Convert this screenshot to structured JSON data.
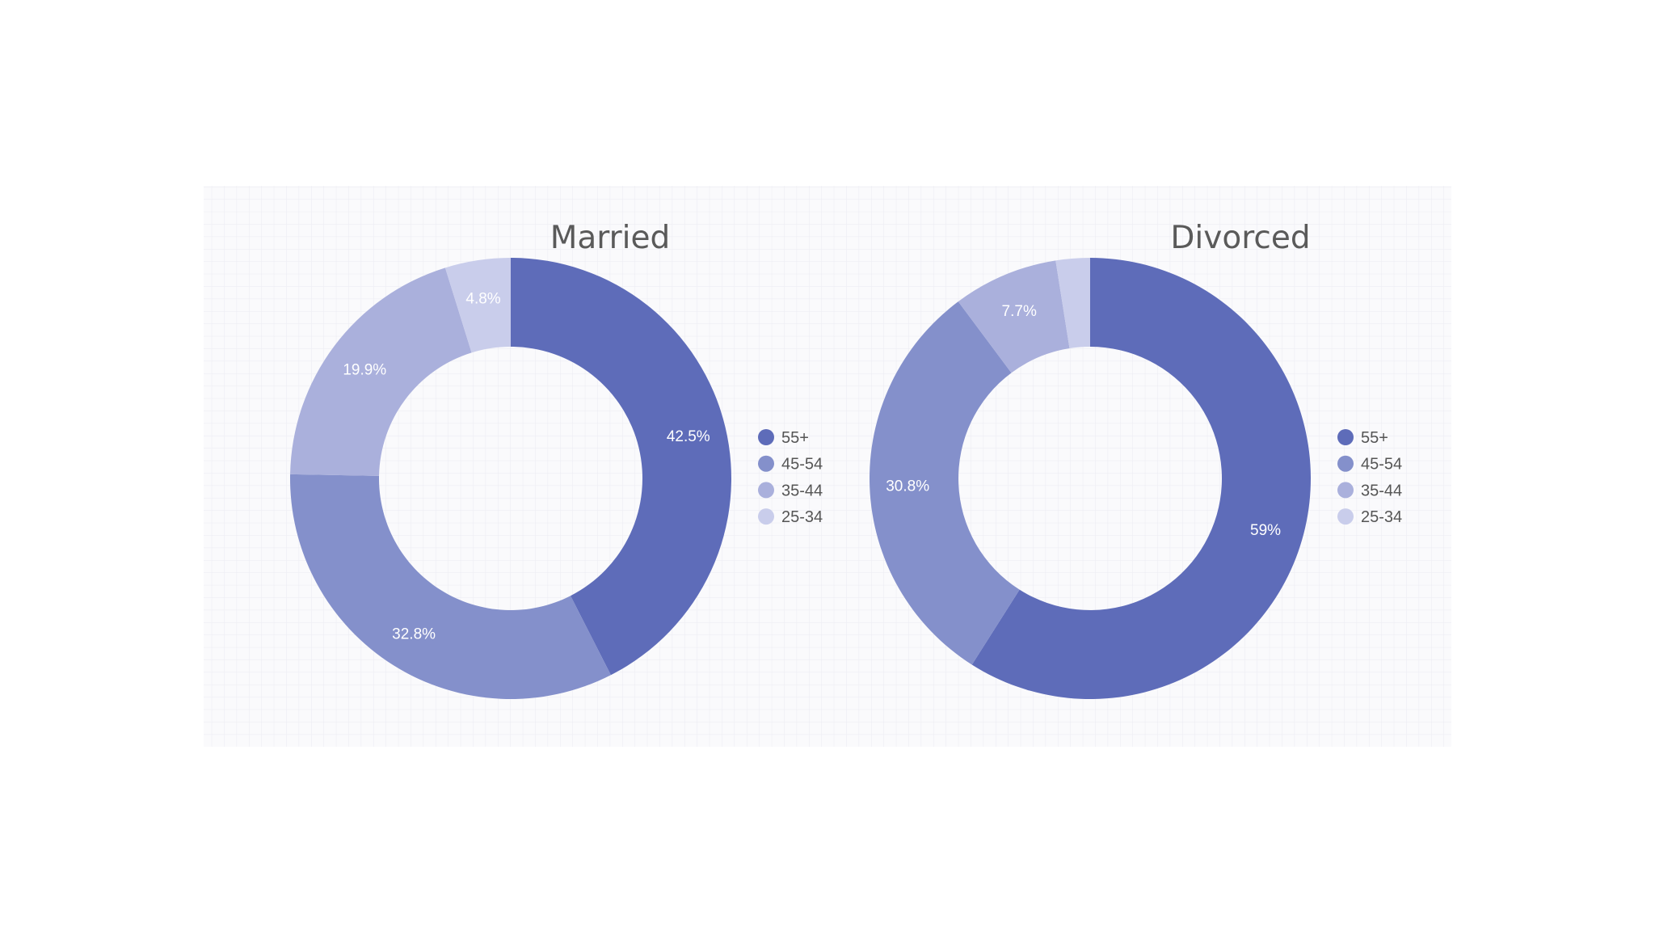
{
  "chart_data": [
    {
      "type": "pie",
      "donut": true,
      "title": "Married",
      "categories": [
        "55+",
        "45-54",
        "35-44",
        "25-34"
      ],
      "values": [
        42.5,
        32.8,
        19.9,
        4.8
      ],
      "value_labels": [
        "42.5%",
        "32.8%",
        "19.9%",
        "4.8%"
      ],
      "legend": {
        "placement": "right",
        "entries": [
          "55+",
          "45-54",
          "35-44",
          "25-34"
        ]
      }
    },
    {
      "type": "pie",
      "donut": true,
      "title": "Divorced",
      "categories": [
        "55+",
        "45-54",
        "35-44",
        "25-34"
      ],
      "values": [
        59,
        30.8,
        7.7,
        2.5
      ],
      "value_labels": [
        "59%",
        "30.8%",
        "7.7%",
        ""
      ],
      "legend": {
        "placement": "right",
        "entries": [
          "55+",
          "45-54",
          "35-44",
          "25-34"
        ]
      }
    }
  ],
  "colors": {
    "series": [
      "#5e6cb9",
      "#8490cb",
      "#aab0dc",
      "#c9cdeb"
    ],
    "label_text": "#ffffff",
    "grid_line": "#e6e7ef",
    "grid_background": "#f8f8fb"
  }
}
